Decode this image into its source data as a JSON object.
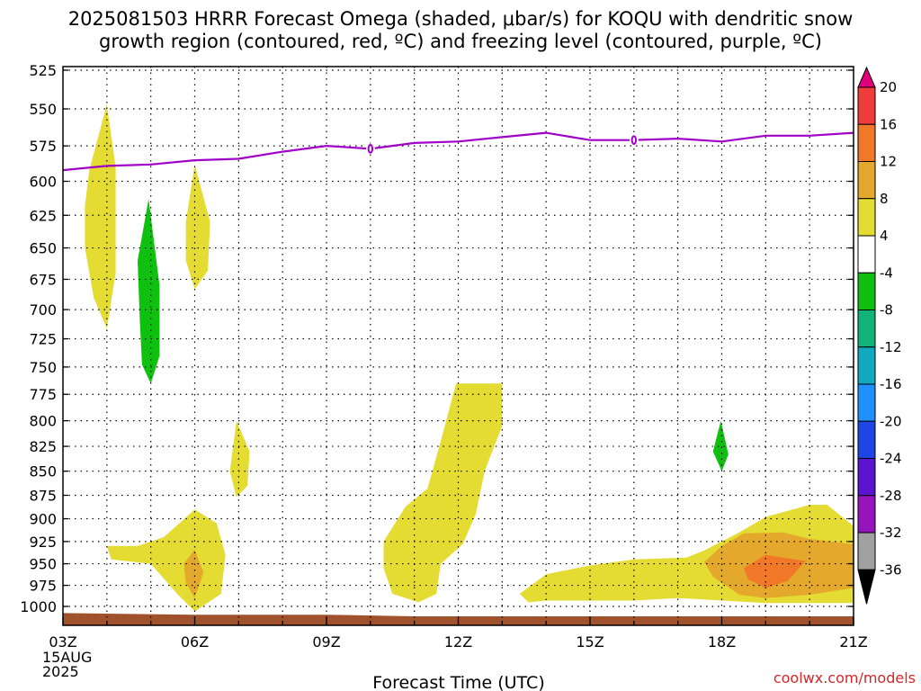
{
  "title": {
    "line1": "2025081503 HRRR Forecast Omega (shaded, μbar/s) for KOQU with dendritic snow",
    "line2": "growth region (contoured, red, ºC) and freezing level (contoured, purple, ºC)"
  },
  "credit": "coolwx.com/models",
  "chart_data": {
    "type": "heatmap",
    "xlabel": "Forecast Time (UTC)",
    "x_ticks": [
      "03Z",
      "06Z",
      "09Z",
      "12Z",
      "15Z",
      "18Z",
      "21Z"
    ],
    "x_tick_hours": [
      3,
      6,
      9,
      12,
      15,
      18,
      21
    ],
    "x_date_label": [
      "15AUG",
      "2025"
    ],
    "xlim": [
      3,
      21
    ],
    "ylabel": "",
    "y_ticks": [
      525,
      550,
      575,
      600,
      625,
      650,
      675,
      700,
      725,
      750,
      775,
      800,
      825,
      850,
      875,
      900,
      925,
      950,
      975,
      1000
    ],
    "ylim": [
      1000,
      525
    ],
    "y_scale": "log-pressure",
    "grid": true,
    "colorbar": {
      "labels": [
        "20",
        "16",
        "12",
        "8",
        "4",
        "-4",
        "-8",
        "-12",
        "-16",
        "-20",
        "-24",
        "-28",
        "-32",
        "-36"
      ],
      "colors": [
        "#e0007a",
        "#f03c3c",
        "#f07828",
        "#e4a82c",
        "#e4dc32",
        "#ffffff",
        "#10c010",
        "#10b478",
        "#10aabe",
        "#1e90ff",
        "#1e46e6",
        "#5a14d2",
        "#9614be",
        "#a0a0a0",
        "#000000"
      ]
    },
    "freezing_level": {
      "color": "#a000c8",
      "label": "0",
      "points": [
        [
          3.0,
          592
        ],
        [
          4.0,
          589
        ],
        [
          5.0,
          588
        ],
        [
          6.0,
          585
        ],
        [
          7.0,
          584
        ],
        [
          8.0,
          579
        ],
        [
          9.0,
          575
        ],
        [
          10.0,
          577
        ],
        [
          11.0,
          573
        ],
        [
          12.0,
          572
        ],
        [
          13.0,
          569
        ],
        [
          14.0,
          566
        ],
        [
          15.0,
          571
        ],
        [
          16.0,
          571
        ],
        [
          17.0,
          570
        ],
        [
          18.0,
          572
        ],
        [
          19.0,
          568
        ],
        [
          20.0,
          568
        ],
        [
          21.0,
          566
        ]
      ],
      "label_points": [
        [
          10.0,
          577
        ],
        [
          16.0,
          571
        ]
      ]
    },
    "omega_regions": [
      {
        "value_range": "4 to 8",
        "color": "#e4dc32",
        "outline": [
          [
            3.5,
            618
          ],
          [
            3.6,
            592
          ],
          [
            4.0,
            547
          ],
          [
            4.2,
            590
          ],
          [
            4.2,
            670
          ],
          [
            4.0,
            716
          ],
          [
            3.7,
            690
          ],
          [
            3.5,
            650
          ]
        ]
      },
      {
        "value_range": "4 to 8",
        "color": "#e4dc32",
        "outline": [
          [
            5.8,
            630
          ],
          [
            6.0,
            588
          ],
          [
            6.35,
            630
          ],
          [
            6.3,
            668
          ],
          [
            6.0,
            683
          ],
          [
            5.8,
            660
          ]
        ]
      },
      {
        "value_range": "-4 to -8",
        "color": "#10c010",
        "outline": [
          [
            4.7,
            660
          ],
          [
            4.95,
            613
          ],
          [
            5.2,
            680
          ],
          [
            5.2,
            740
          ],
          [
            5.0,
            765
          ],
          [
            4.8,
            748
          ],
          [
            4.75,
            710
          ]
        ]
      },
      {
        "value_range": "4 to 8",
        "color": "#e4dc32",
        "outline": [
          [
            6.8,
            850
          ],
          [
            6.95,
            800
          ],
          [
            7.25,
            830
          ],
          [
            7.2,
            865
          ],
          [
            6.95,
            877
          ]
        ]
      },
      {
        "value_range": "-4 to -8",
        "color": "#10c010",
        "outline": [
          [
            17.8,
            830
          ],
          [
            17.98,
            800
          ],
          [
            18.15,
            833
          ],
          [
            18.0,
            850
          ]
        ]
      },
      {
        "value_range": "4 to 8",
        "color": "#e4dc32",
        "outline": [
          [
            10.3,
            925
          ],
          [
            10.8,
            887
          ],
          [
            11.3,
            868
          ],
          [
            11.6,
            820
          ],
          [
            11.95,
            765
          ],
          [
            13.0,
            765
          ],
          [
            13.0,
            805
          ],
          [
            12.6,
            850
          ],
          [
            12.4,
            895
          ],
          [
            12.1,
            928
          ],
          [
            11.6,
            950
          ],
          [
            11.5,
            985
          ],
          [
            11.1,
            995
          ],
          [
            10.5,
            985
          ],
          [
            10.3,
            955
          ]
        ]
      },
      {
        "value_range": "4 to 8",
        "color": "#e4dc32",
        "outline": [
          [
            4.0,
            930
          ],
          [
            4.7,
            930
          ],
          [
            5.3,
            920
          ],
          [
            6.0,
            890
          ],
          [
            6.5,
            905
          ],
          [
            6.7,
            940
          ],
          [
            6.6,
            985
          ],
          [
            6.0,
            1006
          ],
          [
            5.6,
            985
          ],
          [
            5.0,
            950
          ],
          [
            4.1,
            945
          ]
        ]
      },
      {
        "value_range": "8 to 12",
        "color": "#e4a82c",
        "outline": [
          [
            5.75,
            950
          ],
          [
            6.0,
            934
          ],
          [
            6.2,
            960
          ],
          [
            6.0,
            990
          ],
          [
            5.8,
            972
          ]
        ]
      },
      {
        "value_range": "4 to 8",
        "color": "#e4dc32",
        "outline": [
          [
            13.4,
            985
          ],
          [
            14.0,
            962
          ],
          [
            15.0,
            952
          ],
          [
            16.0,
            945
          ],
          [
            17.2,
            943
          ],
          [
            17.6,
            935
          ],
          [
            18.4,
            915
          ],
          [
            19.0,
            898
          ],
          [
            20.0,
            885
          ],
          [
            20.4,
            885
          ],
          [
            21.0,
            908
          ],
          [
            21.0,
            996
          ],
          [
            19.0,
            996
          ],
          [
            17.0,
            990
          ],
          [
            16.0,
            993
          ],
          [
            15.0,
            993
          ],
          [
            14.0,
            993
          ],
          [
            13.6,
            995
          ]
        ]
      },
      {
        "value_range": "8 to 12",
        "color": "#e4a82c",
        "outline": [
          [
            17.6,
            948
          ],
          [
            18.0,
            930
          ],
          [
            18.5,
            916
          ],
          [
            19.4,
            915
          ],
          [
            20.0,
            922
          ],
          [
            21.0,
            928
          ],
          [
            21.0,
            978
          ],
          [
            20.0,
            986
          ],
          [
            19.0,
            990
          ],
          [
            18.4,
            986
          ],
          [
            17.8,
            965
          ]
        ]
      },
      {
        "value_range": "12 to 16",
        "color": "#f07828",
        "outline": [
          [
            18.5,
            955
          ],
          [
            19.0,
            940
          ],
          [
            19.9,
            947
          ],
          [
            19.5,
            970
          ],
          [
            19.0,
            978
          ],
          [
            18.6,
            968
          ]
        ]
      }
    ],
    "terrain": {
      "color": "#a0522d",
      "points": [
        [
          3.0,
          1008
        ],
        [
          6.0,
          1010
        ],
        [
          9.0,
          1010
        ],
        [
          11.0,
          1012
        ],
        [
          13.0,
          1012
        ],
        [
          16.0,
          1012
        ],
        [
          21.0,
          1012
        ]
      ]
    }
  }
}
